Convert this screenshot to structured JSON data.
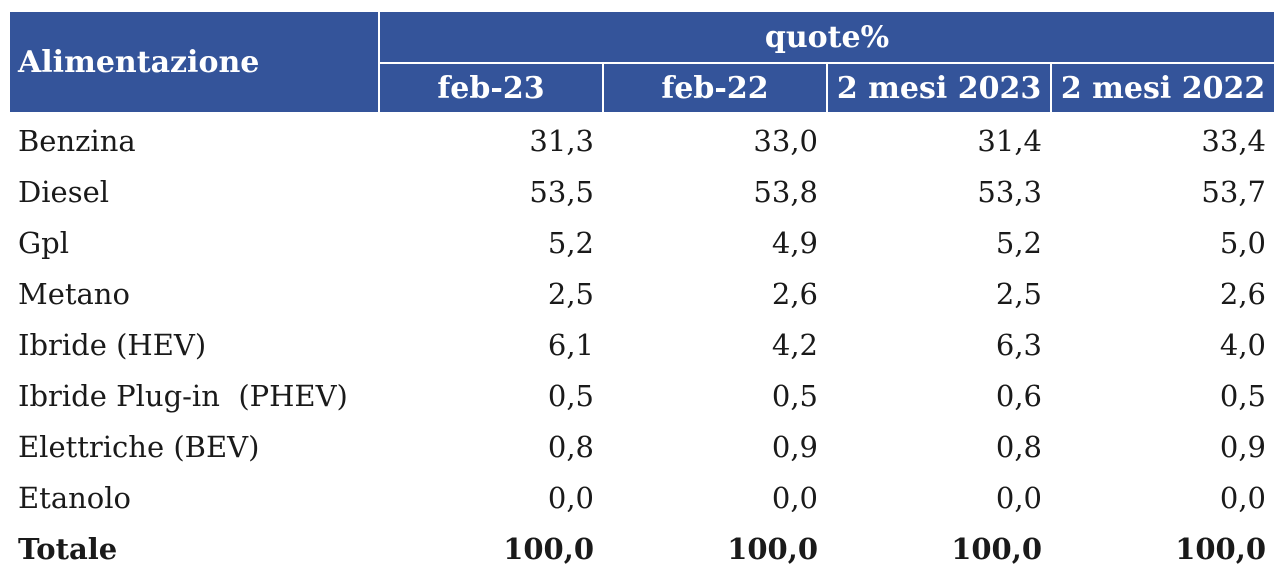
{
  "table": {
    "header": {
      "first": "Alimentazione",
      "group": "quote%",
      "columns": [
        "feb-23",
        "feb-22",
        "2 mesi 2023",
        "2 mesi 2022"
      ]
    },
    "rows": [
      [
        "Benzina",
        "31,3",
        "33,0",
        "31,4",
        "33,4"
      ],
      [
        "Diesel",
        "53,5",
        "53,8",
        "53,3",
        "53,7"
      ],
      [
        "Gpl",
        "5,2",
        "4,9",
        "5,2",
        "5,0"
      ],
      [
        "Metano",
        "2,5",
        "2,6",
        "2,5",
        "2,6"
      ],
      [
        "Ibride (HEV)",
        "6,1",
        "4,2",
        "6,3",
        "4,0"
      ],
      [
        "Ibride Plug-in  (PHEV)",
        "0,5",
        "0,5",
        "0,6",
        "0,5"
      ],
      [
        "Elettriche (BEV)",
        "0,8",
        "0,9",
        "0,8",
        "0,9"
      ],
      [
        "Etanolo",
        "0,0",
        "0,0",
        "0,0",
        "0,0"
      ],
      [
        "Totale",
        "100,0",
        "100,0",
        "100,0",
        "100,0"
      ]
    ],
    "bold_rows": [
      8
    ]
  }
}
